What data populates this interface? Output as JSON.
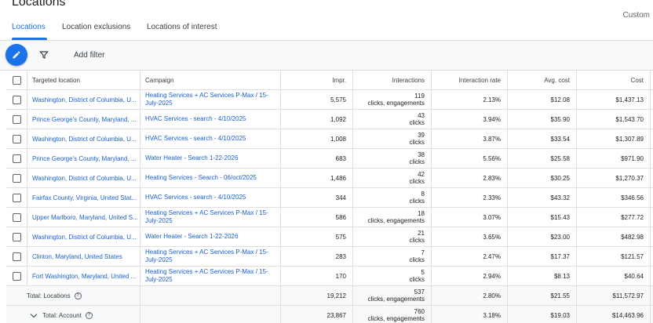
{
  "header": {
    "title": "Locations",
    "custom_label": "Custom"
  },
  "tabs": [
    {
      "label": "Locations",
      "active": true
    },
    {
      "label": "Location exclusions",
      "active": false
    },
    {
      "label": "Locations of interest",
      "active": false
    }
  ],
  "toolbar": {
    "edit_icon": "pencil-icon",
    "filter_icon": "filter-funnel-icon",
    "add_filter_label": "Add filter"
  },
  "colors": {
    "accent": "#1a73e8",
    "link": "#1a5fd1"
  },
  "table": {
    "columns": [
      "Targeted location",
      "Campaign",
      "Impr.",
      "Interactions",
      "Interaction rate",
      "Avg. cost",
      "Cost"
    ],
    "rows": [
      {
        "location": "Washington, District of Columbia, U...",
        "campaign": "Heating Services + AC Services P-Max / 15-July-2025",
        "impr": "5,575",
        "interactions": "119",
        "interactions_unit": "clicks, engagements",
        "rate": "2.13%",
        "avg_cost": "$12.08",
        "cost": "$1,437.13"
      },
      {
        "location": "Prince George's County, Maryland, ...",
        "campaign": "HVAC Services - search - 4/10/2025",
        "impr": "1,092",
        "interactions": "43",
        "interactions_unit": "clicks",
        "rate": "3.94%",
        "avg_cost": "$35.90",
        "cost": "$1,543.70"
      },
      {
        "location": "Washington, District of Columbia, U...",
        "campaign": "HVAC Services - search - 4/10/2025",
        "impr": "1,008",
        "interactions": "39",
        "interactions_unit": "clicks",
        "rate": "3.87%",
        "avg_cost": "$33.54",
        "cost": "$1,307.89"
      },
      {
        "location": "Prince George's County, Maryland, ...",
        "campaign": "Water Heater - Search 1-22-2026",
        "impr": "683",
        "interactions": "38",
        "interactions_unit": "clicks",
        "rate": "5.56%",
        "avg_cost": "$25.58",
        "cost": "$971.90"
      },
      {
        "location": "Washington, District of Columbia, U...",
        "campaign": "Heating Services - Search - 06/oct/2025",
        "impr": "1,486",
        "interactions": "42",
        "interactions_unit": "clicks",
        "rate": "2.83%",
        "avg_cost": "$30.25",
        "cost": "$1,270.37"
      },
      {
        "location": "Fairfax County, Virginia, United Stat...",
        "campaign": "HVAC Services - search - 4/10/2025",
        "impr": "344",
        "interactions": "8",
        "interactions_unit": "clicks",
        "rate": "2.33%",
        "avg_cost": "$43.32",
        "cost": "$346.56"
      },
      {
        "location": "Upper Marlboro, Maryland, United S...",
        "campaign": "Heating Services + AC Services P-Max / 15-July-2025",
        "impr": "586",
        "interactions": "18",
        "interactions_unit": "clicks, engagements",
        "rate": "3.07%",
        "avg_cost": "$15.43",
        "cost": "$277.72"
      },
      {
        "location": "Washington, District of Columbia, U...",
        "campaign": "Water Heater - Search 1-22-2026",
        "impr": "575",
        "interactions": "21",
        "interactions_unit": "clicks",
        "rate": "3.65%",
        "avg_cost": "$23.00",
        "cost": "$482.98"
      },
      {
        "location": "Clinton, Maryland, United States",
        "campaign": "Heating Services + AC Services P-Max / 15-July-2025",
        "impr": "283",
        "interactions": "7",
        "interactions_unit": "clicks",
        "rate": "2.47%",
        "avg_cost": "$17.37",
        "cost": "$121.57"
      },
      {
        "location": "Fort Washington, Maryland, United ...",
        "campaign": "Heating Services + AC Services P-Max / 15-July-2025",
        "impr": "170",
        "interactions": "5",
        "interactions_unit": "clicks",
        "rate": "2.94%",
        "avg_cost": "$8.13",
        "cost": "$40.64"
      }
    ],
    "totals": [
      {
        "label": "Total: Locations",
        "impr": "19,212",
        "interactions": "537",
        "interactions_unit": "clicks, engagements",
        "rate": "2.80%",
        "avg_cost": "$21.55",
        "cost": "$11,572.97"
      },
      {
        "label": "Total: Account",
        "impr": "23,867",
        "interactions": "760",
        "interactions_unit": "clicks, engagements",
        "rate": "3.18%",
        "avg_cost": "$19.03",
        "cost": "$14,463.96"
      }
    ]
  }
}
